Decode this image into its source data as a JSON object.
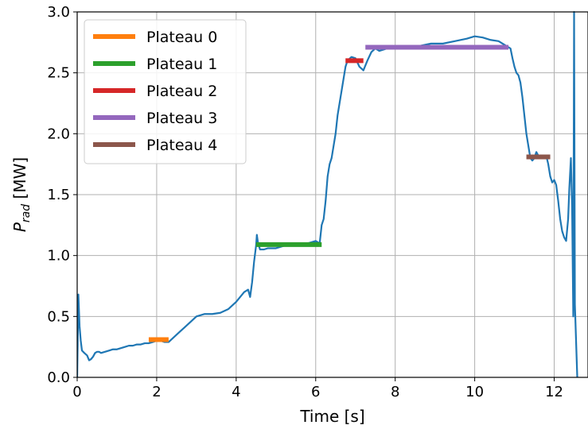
{
  "chart_data": {
    "type": "line",
    "xlabel": "Time [s]",
    "ylabel_main": "P",
    "ylabel_sub": "rad",
    "ylabel_unit": " [MW]",
    "xlim": [
      0,
      12.85
    ],
    "ylim": [
      0,
      3.0
    ],
    "grid": true,
    "legend_position": "top-left",
    "x_ticks": [
      0,
      2,
      4,
      6,
      8,
      10,
      12
    ],
    "x_tick_labels": [
      "0",
      "2",
      "4",
      "6",
      "8",
      "10",
      "12"
    ],
    "y_ticks": [
      0,
      0.5,
      1.0,
      1.5,
      2.0,
      2.5,
      3.0
    ],
    "y_tick_labels": [
      "0.0",
      "0.5",
      "1.0",
      "1.5",
      "2.0",
      "2.5",
      "3.0"
    ],
    "line_color": "#1f77b4",
    "signal": {
      "x": [
        0.0,
        0.03,
        0.06,
        0.09,
        0.12,
        0.18,
        0.25,
        0.3,
        0.35,
        0.4,
        0.45,
        0.5,
        0.55,
        0.6,
        0.7,
        0.8,
        0.9,
        1.0,
        1.1,
        1.2,
        1.3,
        1.4,
        1.5,
        1.6,
        1.7,
        1.8,
        1.9,
        2.0,
        2.1,
        2.2,
        2.3,
        2.4,
        2.5,
        2.6,
        2.7,
        2.8,
        2.9,
        3.0,
        3.1,
        3.2,
        3.4,
        3.6,
        3.8,
        4.0,
        4.1,
        4.2,
        4.3,
        4.35,
        4.4,
        4.45,
        4.5,
        4.52,
        4.55,
        4.6,
        4.7,
        4.8,
        5.0,
        5.2,
        5.4,
        5.6,
        5.8,
        6.0,
        6.1,
        6.15,
        6.2,
        6.25,
        6.3,
        6.35,
        6.4,
        6.45,
        6.5,
        6.55,
        6.6,
        6.65,
        6.7,
        6.75,
        6.8,
        6.9,
        7.0,
        7.1,
        7.2,
        7.3,
        7.4,
        7.5,
        7.6,
        7.8,
        8.0,
        8.3,
        8.6,
        8.9,
        9.2,
        9.5,
        9.8,
        10.0,
        10.2,
        10.4,
        10.6,
        10.8,
        10.9,
        10.95,
        11.0,
        11.05,
        11.1,
        11.15,
        11.2,
        11.25,
        11.3,
        11.35,
        11.4,
        11.45,
        11.5,
        11.55,
        11.6,
        11.7,
        11.8,
        11.85,
        11.9,
        11.95,
        12.0,
        12.05,
        12.1,
        12.15,
        12.2,
        12.25,
        12.3,
        12.35,
        12.38,
        12.42,
        12.45,
        12.48,
        12.5,
        12.52,
        12.55,
        12.58
      ],
      "y": [
        0.0,
        0.68,
        0.42,
        0.3,
        0.22,
        0.2,
        0.18,
        0.14,
        0.15,
        0.17,
        0.2,
        0.21,
        0.21,
        0.2,
        0.21,
        0.22,
        0.23,
        0.23,
        0.24,
        0.25,
        0.26,
        0.26,
        0.27,
        0.27,
        0.28,
        0.28,
        0.29,
        0.3,
        0.3,
        0.29,
        0.29,
        0.32,
        0.35,
        0.38,
        0.41,
        0.44,
        0.47,
        0.5,
        0.51,
        0.52,
        0.52,
        0.53,
        0.56,
        0.62,
        0.66,
        0.7,
        0.72,
        0.66,
        0.78,
        0.95,
        1.08,
        1.17,
        1.1,
        1.05,
        1.05,
        1.06,
        1.06,
        1.08,
        1.08,
        1.09,
        1.1,
        1.12,
        1.1,
        1.25,
        1.3,
        1.45,
        1.65,
        1.75,
        1.8,
        1.9,
        2.0,
        2.15,
        2.25,
        2.35,
        2.45,
        2.55,
        2.6,
        2.63,
        2.62,
        2.55,
        2.52,
        2.6,
        2.67,
        2.7,
        2.68,
        2.7,
        2.7,
        2.72,
        2.72,
        2.74,
        2.74,
        2.76,
        2.78,
        2.8,
        2.79,
        2.77,
        2.76,
        2.72,
        2.7,
        2.62,
        2.55,
        2.5,
        2.48,
        2.42,
        2.3,
        2.15,
        2.0,
        1.9,
        1.8,
        1.78,
        1.8,
        1.85,
        1.82,
        1.8,
        1.82,
        1.75,
        1.65,
        1.6,
        1.62,
        1.58,
        1.45,
        1.3,
        1.2,
        1.15,
        1.12,
        1.3,
        1.55,
        1.8,
        1.4,
        0.5,
        3.0,
        0.6,
        0.3,
        0.0
      ]
    },
    "plateaus": [
      {
        "name": "Plateau 0",
        "color": "#ff7f0e",
        "x_start": 1.8,
        "x_end": 2.3,
        "y": 0.31
      },
      {
        "name": "Plateau 1",
        "color": "#2ca02c",
        "x_start": 4.5,
        "x_end": 6.15,
        "y": 1.09
      },
      {
        "name": "Plateau 2",
        "color": "#d62728",
        "x_start": 6.75,
        "x_end": 7.2,
        "y": 2.6
      },
      {
        "name": "Plateau 3",
        "color": "#9467bd",
        "x_start": 7.25,
        "x_end": 10.85,
        "y": 2.71
      },
      {
        "name": "Plateau 4",
        "color": "#8c564b",
        "x_start": 11.3,
        "x_end": 11.9,
        "y": 1.81
      }
    ]
  }
}
